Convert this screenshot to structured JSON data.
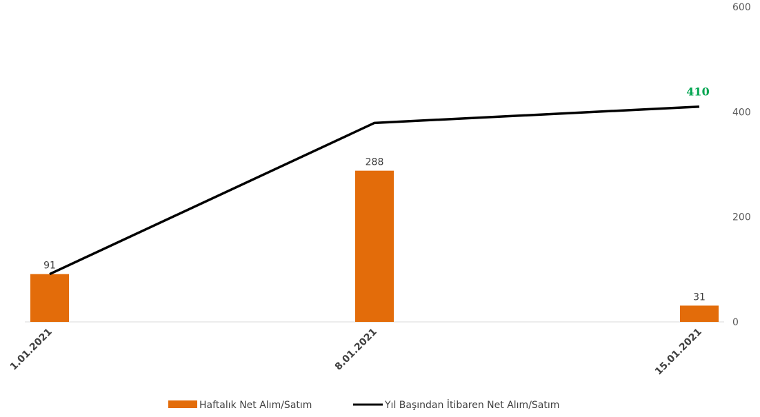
{
  "chart_data": {
    "type": "bar",
    "categories": [
      "1.01.2021",
      "8.01.2021",
      "15.01.2021"
    ],
    "series": [
      {
        "name": "Haftalık Net Alım/Satım",
        "type": "bar",
        "values": [
          91,
          288,
          31
        ],
        "color": "#E36C0A"
      },
      {
        "name": "Yıl Başından İtibaren Net Alım/Satım",
        "type": "line",
        "values": [
          91,
          379,
          410
        ],
        "color": "#000000"
      }
    ],
    "data_labels": {
      "bar": [
        "91",
        "288",
        "31"
      ],
      "line_last": "410",
      "line_last_color": "#00A550"
    },
    "y_axis": {
      "position": "right",
      "ylim": [
        0,
        600
      ],
      "ticks": [
        "0",
        "200",
        "400",
        "600"
      ]
    },
    "grid": false,
    "legend": "bottom-center",
    "title": "",
    "xlabel": "",
    "ylabel": ""
  }
}
